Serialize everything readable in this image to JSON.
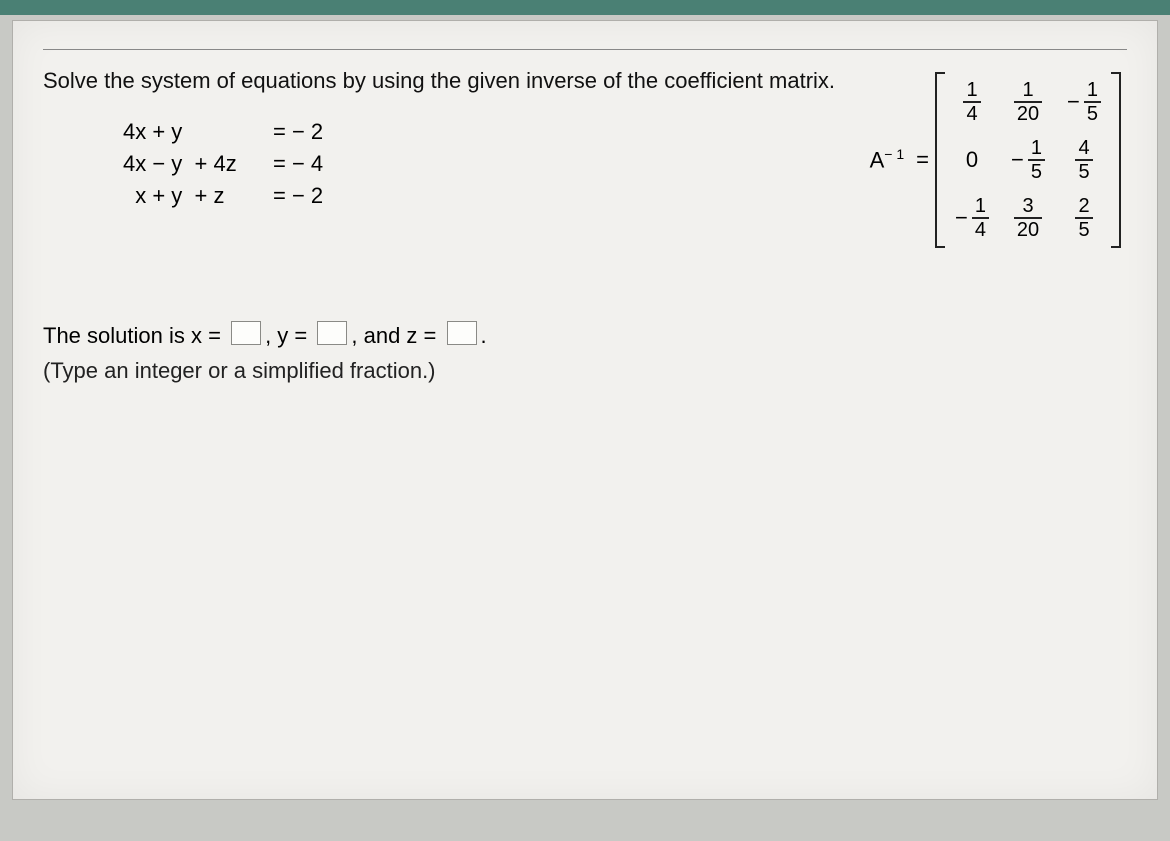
{
  "prompt": "Solve the system of equations by using the given inverse of the coefficient matrix.",
  "equations": [
    {
      "lhs": "4x + y",
      "rhs": "= − 2"
    },
    {
      "lhs": "4x − y  + 4z",
      "rhs": "= − 4"
    },
    {
      "lhs": "  x + y  + z",
      "rhs": "= − 2"
    }
  ],
  "matrix_label_A": "A",
  "matrix_label_exp": "− 1",
  "matrix_label_eq": "=",
  "matrix": [
    [
      {
        "sign": "",
        "num": "1",
        "den": "4"
      },
      {
        "sign": "",
        "num": "1",
        "den": "20"
      },
      {
        "sign": "−",
        "num": "1",
        "den": "5"
      }
    ],
    [
      {
        "sign": "",
        "plain": "0"
      },
      {
        "sign": "−",
        "num": "1",
        "den": "5"
      },
      {
        "sign": "",
        "num": "4",
        "den": "5"
      }
    ],
    [
      {
        "sign": "−",
        "num": "1",
        "den": "4"
      },
      {
        "sign": "",
        "num": "3",
        "den": "20"
      },
      {
        "sign": "",
        "num": "2",
        "den": "5"
      }
    ]
  ],
  "answer": {
    "pre": "The solution is x =",
    "mid1": ", y =",
    "mid2": ", and z =",
    "post": "."
  },
  "hint": "(Type an integer or a simplified fraction.)",
  "colors": {
    "page_bg": "#f2f1ee",
    "text": "#111111",
    "rule": "#888888",
    "input_border": "#8a8a86"
  },
  "font_sizes": {
    "body": 22,
    "frac": 20,
    "sup": 14
  }
}
